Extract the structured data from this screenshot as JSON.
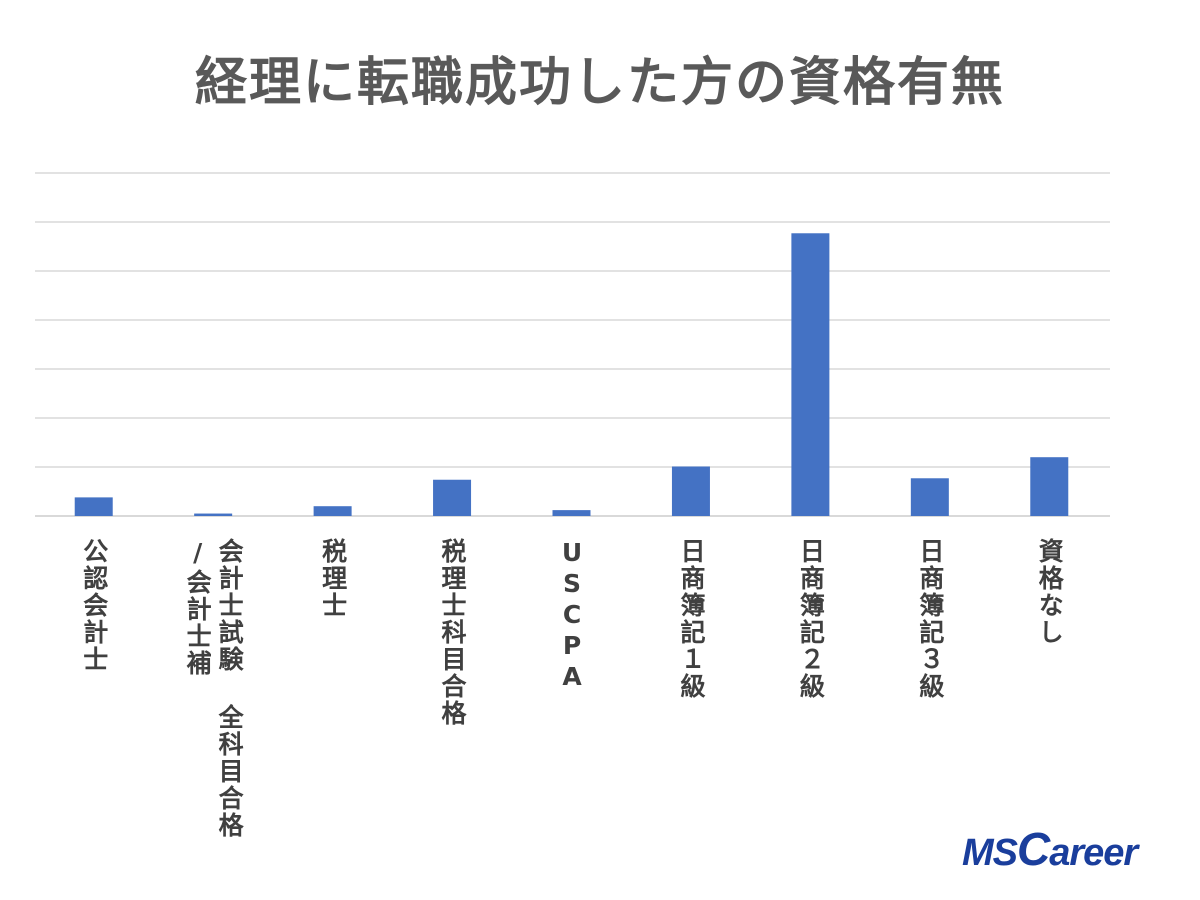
{
  "logo": "MSCareer",
  "chart_data": {
    "type": "bar",
    "title": "経理に転職成功した方の資格有無",
    "categories": [
      "公認会計士",
      "会計士試験 全科目合格\n/会計士補",
      "税理士",
      "税理士科目合格",
      "USCPA",
      "日商簿記１級",
      "日商簿記２級",
      "日商簿記３級",
      "資格なし"
    ],
    "values": [
      0.38,
      0.05,
      0.2,
      0.74,
      0.12,
      1.01,
      5.77,
      0.77,
      1.2
    ],
    "ylim": [
      0,
      7
    ],
    "grid_step": 1,
    "grid": true,
    "show_value_labels": false,
    "bar_color": "#4472c4",
    "grid_color": "#d9d9d9"
  }
}
